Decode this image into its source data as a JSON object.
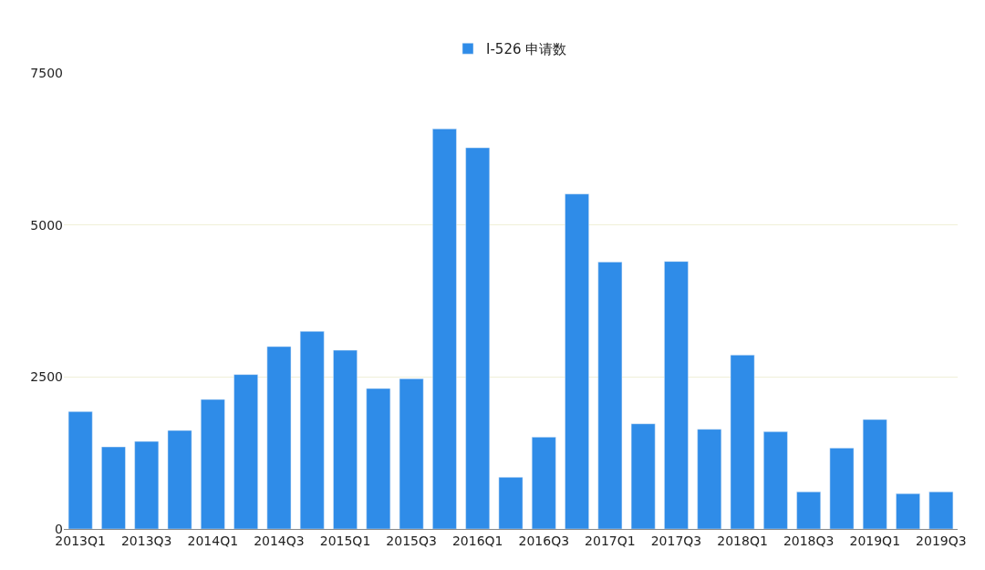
{
  "chart_data": {
    "type": "bar",
    "categories": [
      "2013Q1",
      null,
      "2013Q3",
      null,
      "2014Q1",
      null,
      "2014Q3",
      null,
      "2015Q1",
      null,
      "2015Q3",
      null,
      "2016Q1",
      null,
      "2016Q3",
      null,
      "2017Q1",
      null,
      "2017Q3",
      null,
      "2018Q1",
      null,
      "2018Q3",
      null,
      "2019Q1",
      null,
      "2019Q3"
    ],
    "series": [
      {
        "name": "I-526 申请数",
        "color": "#2f8ce8",
        "values": [
          1930,
          1350,
          1440,
          1620,
          2130,
          2540,
          3000,
          3250,
          2940,
          2310,
          2470,
          6580,
          6270,
          850,
          1510,
          5510,
          4390,
          1730,
          4400,
          1640,
          2860,
          1600,
          610,
          1330,
          1800,
          580,
          610
        ]
      }
    ],
    "ylim": [
      0,
      7500
    ],
    "yticks": [
      0,
      2500,
      5000,
      7500
    ],
    "grid": "y",
    "legend": "top"
  }
}
